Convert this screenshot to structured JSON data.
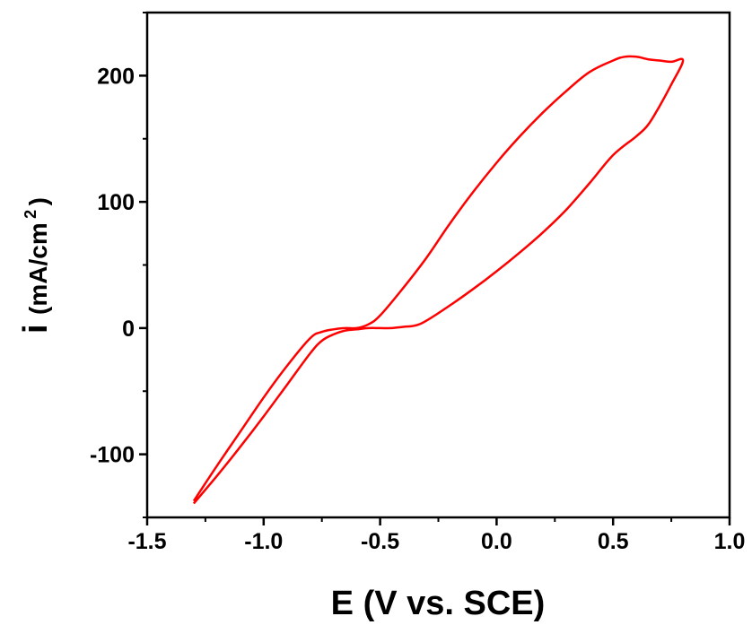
{
  "chart_data": {
    "type": "line",
    "title": "",
    "xlabel": "E (V vs. SCE)",
    "ylabel": {
      "symbol": "i",
      "unit_open": "(mA/cm",
      "unit_sup": "2",
      "unit_close": ")"
    },
    "xlim": [
      -1.5,
      1.0
    ],
    "ylim": [
      -150,
      250
    ],
    "xticks": [
      {
        "value": -1.5,
        "label": "-1.5"
      },
      {
        "value": -1.0,
        "label": "-1.0"
      },
      {
        "value": -0.5,
        "label": "-0.5"
      },
      {
        "value": 0.0,
        "label": "0.0"
      },
      {
        "value": 0.5,
        "label": "0.5"
      },
      {
        "value": 1.0,
        "label": "1.0"
      }
    ],
    "yticks": [
      {
        "value": -100,
        "label": "-100"
      },
      {
        "value": 0,
        "label": "0"
      },
      {
        "value": 100,
        "label": "100"
      },
      {
        "value": 200,
        "label": "200"
      }
    ],
    "grid": false,
    "legend": "none",
    "series": [
      {
        "color": "#ff0000",
        "x": [
          -1.3,
          -1.2,
          -1.1,
          -1.0,
          -0.9,
          -0.8,
          -0.75,
          -0.7,
          -0.65,
          -0.6,
          -0.55,
          -0.5,
          -0.4,
          -0.3,
          -0.2,
          -0.1,
          0.0,
          0.1,
          0.2,
          0.3,
          0.4,
          0.5,
          0.55,
          0.6,
          0.65,
          0.7,
          0.75,
          0.8,
          0.75,
          0.7,
          0.65,
          0.6,
          0.5,
          0.4,
          0.3,
          0.2,
          0.1,
          0.0,
          -0.1,
          -0.2,
          -0.3,
          -0.35,
          -0.4,
          -0.45,
          -0.5,
          -0.55,
          -0.6,
          -0.65,
          -0.7,
          -0.75,
          -0.8,
          -0.9,
          -1.0,
          -1.1,
          -1.2,
          -1.3
        ],
        "y": [
          -137,
          -109,
          -82,
          -55,
          -30,
          -8,
          -3,
          -1,
          0,
          0,
          3,
          10,
          32,
          56,
          83,
          108,
          131,
          152,
          171,
          188,
          203,
          212,
          215,
          215,
          213,
          212,
          211,
          212,
          193,
          176,
          161,
          152,
          137,
          115,
          94,
          76,
          60,
          45,
          31,
          18,
          6,
          2,
          1,
          0,
          0,
          0,
          -1,
          -2,
          -5,
          -10,
          -20,
          -45,
          -70,
          -94,
          -117,
          -139
        ]
      }
    ]
  }
}
